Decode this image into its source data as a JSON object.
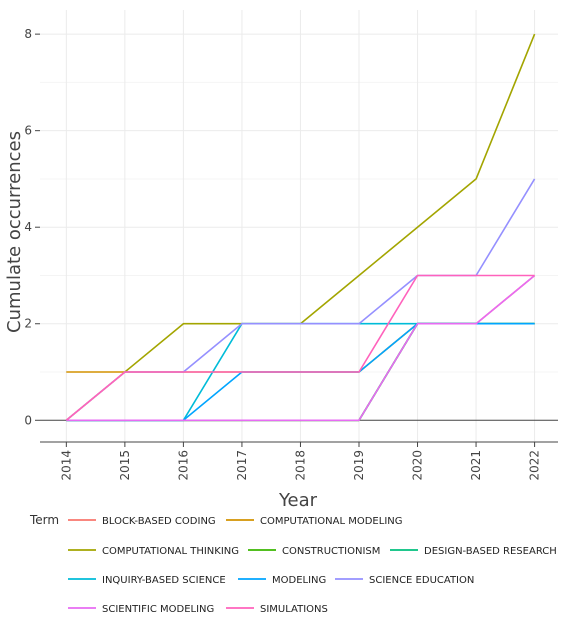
{
  "chart_data": {
    "type": "line",
    "title": "",
    "xlabel": "Year",
    "ylabel": "Cumulate occurrences",
    "x": [
      2014,
      2015,
      2016,
      2017,
      2018,
      2019,
      2020,
      2021,
      2022
    ],
    "xlim": [
      2013.55,
      2022.4
    ],
    "ylim": [
      -0.45,
      8.5
    ],
    "yticks": [
      0,
      2,
      4,
      6,
      8
    ],
    "grid": true,
    "legend_title": "Term",
    "legend_position": "bottom",
    "series": [
      {
        "name": "BLOCK-BASED CODING",
        "color": "#f8766d",
        "values": [
          0,
          0,
          0,
          0,
          0,
          0,
          2,
          2,
          3
        ]
      },
      {
        "name": "COMPUTATIONAL MODELING",
        "color": "#d39200",
        "values": [
          1,
          1,
          1,
          1,
          1,
          1,
          2,
          2,
          2
        ]
      },
      {
        "name": "COMPUTATIONAL THINKING",
        "color": "#a3a500",
        "values": [
          0,
          1,
          2,
          2,
          2,
          3,
          4,
          5,
          8
        ]
      },
      {
        "name": "CONSTRUCTIONISM",
        "color": "#39b600",
        "values": [
          0,
          0,
          0,
          0,
          0,
          0,
          2,
          2,
          2
        ]
      },
      {
        "name": "DESIGN-BASED RESEARCH",
        "color": "#00bf7d",
        "values": [
          0,
          0,
          0,
          0,
          0,
          0,
          2,
          2,
          2
        ]
      },
      {
        "name": "INQUIRY-BASED SCIENCE",
        "color": "#00bcd8",
        "values": [
          0,
          0,
          0,
          2,
          2,
          2,
          2,
          2,
          2
        ]
      },
      {
        "name": "MODELING",
        "color": "#00a5ff",
        "values": [
          0,
          0,
          0,
          1,
          1,
          1,
          2,
          2,
          2
        ]
      },
      {
        "name": "SCIENCE EDUCATION",
        "color": "#9590ff",
        "values": [
          0,
          1,
          1,
          2,
          2,
          2,
          3,
          3,
          5
        ]
      },
      {
        "name": "SCIENTIFIC MODELING",
        "color": "#e76bf3",
        "values": [
          0,
          0,
          0,
          0,
          0,
          0,
          2,
          2,
          3
        ]
      },
      {
        "name": "SIMULATIONS",
        "color": "#ff62bc",
        "values": [
          0,
          1,
          1,
          1,
          1,
          1,
          3,
          3,
          3
        ]
      }
    ]
  }
}
